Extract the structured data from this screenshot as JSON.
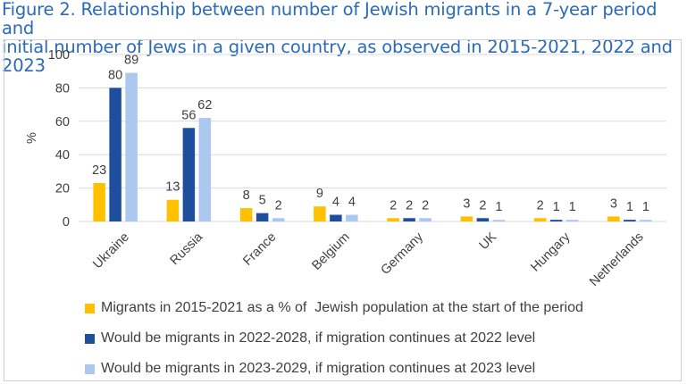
{
  "title": {
    "line1": "Figure 2. Relationship between number of Jewish migrants in a 7-year period and",
    "line2": "initial number of Jews in a given country, as observed in 2015-2021, 2022 and 2023"
  },
  "colors": {
    "series1": "#ffc000",
    "series2": "#1f4e9c",
    "series3": "#adc8ee",
    "grid": "#d9d9d9",
    "text": "#404040",
    "title": "#2a6ab8"
  },
  "chart_data": {
    "type": "bar",
    "categories": [
      "Ukraine",
      "Russia",
      "France",
      "Belgium",
      "Germany",
      "UK",
      "Hungary",
      "Netherlands"
    ],
    "series": [
      {
        "name": "Migrants in 2015-2021 as a % of  Jewish population at the start of the period",
        "values": [
          23,
          13,
          8,
          9,
          2,
          3,
          2,
          3
        ]
      },
      {
        "name": "Would be migrants in 2022-2028, if migration continues at 2022 level",
        "values": [
          80,
          56,
          5,
          4,
          2,
          2,
          1,
          1
        ]
      },
      {
        "name": "Would be migrants in 2023-2029, if migration continues at 2023 level",
        "values": [
          89,
          62,
          2,
          4,
          2,
          1,
          1,
          1
        ]
      }
    ],
    "ylabel": "%",
    "ylim": [
      0,
      100
    ],
    "yticks": [
      0,
      20,
      40,
      60,
      80,
      100
    ],
    "grid": true,
    "legend_position": "bottom"
  }
}
